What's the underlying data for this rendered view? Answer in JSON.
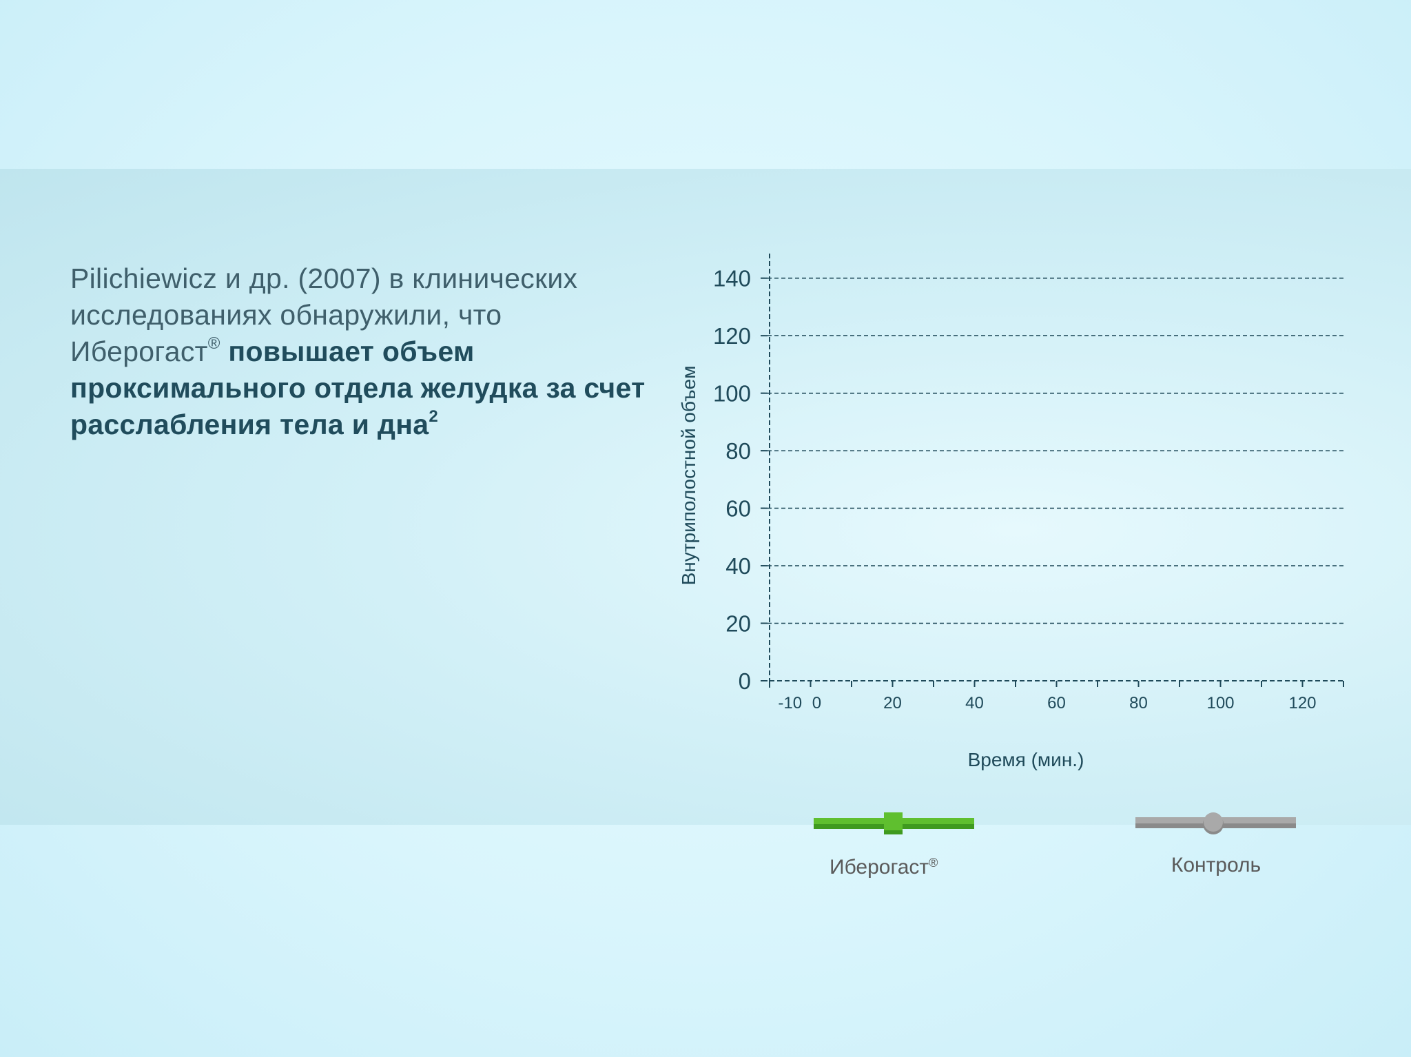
{
  "intro": {
    "light_text": "Pilichiewicz и др. (2007) в клинических исследованиях обнаружили, что Иберогаст",
    "reg_mark": "®",
    "bold_text": " повышает объем проксимального отдела желудка за счет расслабления тела и дна",
    "footnote": "2"
  },
  "colors": {
    "iberogast": "#5fbf2f",
    "iberogast_dark": "#3f9a1f",
    "control": "#a9a9a9",
    "control_dark": "#8a8a8a",
    "axis": "#1f4a5a"
  },
  "chart_data": {
    "type": "line",
    "title": "",
    "xlabel": "Время (мин.)",
    "ylabel": "Внутриполостной объем",
    "xlim": [
      -10,
      130
    ],
    "ylim": [
      0,
      150
    ],
    "x_tick_labels": [
      "-10",
      "0",
      "20",
      "40",
      "60",
      "80",
      "100",
      "120"
    ],
    "x_tick_values": [
      -10,
      0,
      20,
      40,
      60,
      80,
      100,
      120
    ],
    "x_minor_ticks": [
      -10,
      0,
      10,
      20,
      30,
      40,
      50,
      60,
      70,
      80,
      90,
      100,
      110,
      120,
      130
    ],
    "y_ticks": [
      0,
      20,
      40,
      60,
      80,
      100,
      120,
      140
    ],
    "grid": true,
    "series": [
      {
        "name": "Иберогаст",
        "name_sup": "®",
        "marker": "square",
        "values": []
      },
      {
        "name": "Контроль",
        "name_sup": "",
        "marker": "circle",
        "values": []
      }
    ],
    "legend_position": "bottom"
  }
}
